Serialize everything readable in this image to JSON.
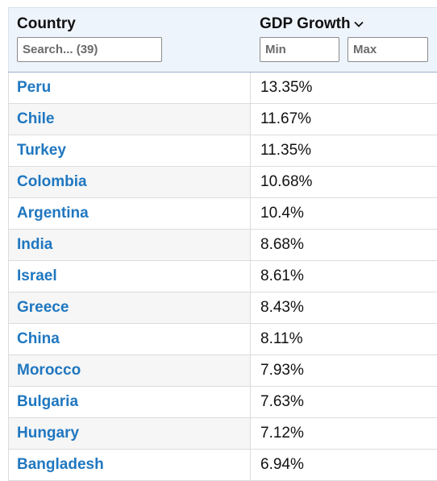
{
  "columns": {
    "country": {
      "title": "Country",
      "search_placeholder": "Search... (39)"
    },
    "gdp": {
      "title": "GDP Growth",
      "sort_icon": "chevron-down-icon",
      "min_placeholder": "Min",
      "max_placeholder": "Max"
    }
  },
  "rows": [
    {
      "country": "Peru",
      "gdp": "13.35%"
    },
    {
      "country": "Chile",
      "gdp": "11.67%"
    },
    {
      "country": "Turkey",
      "gdp": "11.35%"
    },
    {
      "country": "Colombia",
      "gdp": "10.68%"
    },
    {
      "country": "Argentina",
      "gdp": "10.4%"
    },
    {
      "country": "India",
      "gdp": "8.68%"
    },
    {
      "country": "Israel",
      "gdp": "8.61%"
    },
    {
      "country": "Greece",
      "gdp": "8.43%"
    },
    {
      "country": "China",
      "gdp": "8.11%"
    },
    {
      "country": "Morocco",
      "gdp": "7.93%"
    },
    {
      "country": "Bulgaria",
      "gdp": "7.63%"
    },
    {
      "country": "Hungary",
      "gdp": "7.12%"
    },
    {
      "country": "Bangladesh",
      "gdp": "6.94%"
    }
  ],
  "colors": {
    "link": "#1f77c0",
    "header_bg": "#eef4fb",
    "alt_row": "#f6f6f6"
  }
}
